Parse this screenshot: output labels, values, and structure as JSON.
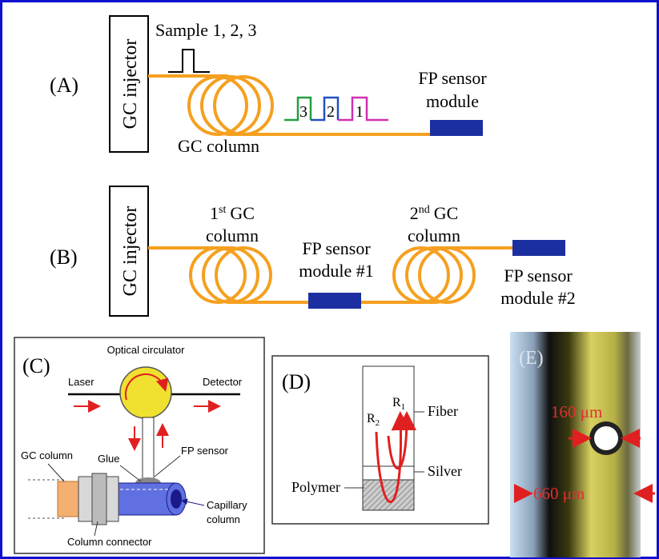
{
  "panel_a": {
    "label": "(A)",
    "injector": "GC injector",
    "sample": "Sample 1, 2, 3",
    "column": "GC column",
    "peaks": [
      "3",
      "2",
      "1"
    ],
    "sensor": [
      "FP sensor",
      "module"
    ]
  },
  "panel_b": {
    "label": "(B)",
    "injector": "GC injector",
    "first_column": {
      "number": "1",
      "suffix": "st",
      "name": "GC",
      "line2": "column"
    },
    "sensor_1": [
      "FP sensor",
      "module #1"
    ],
    "second_column": {
      "number": "2",
      "suffix": "nd",
      "name": "GC",
      "line2": "column"
    },
    "sensor_2": [
      "FP sensor",
      "module #2"
    ]
  },
  "panel_c": {
    "label": "(C)",
    "circulator": "Optical circulator",
    "laser": "Laser",
    "detector": "Detector",
    "gc_column": "GC column",
    "glue": "Glue",
    "fp_sensor": "FP sensor",
    "capillary": [
      "Capillary",
      "column"
    ],
    "connector": "Column connector"
  },
  "panel_d": {
    "label": "(D)",
    "r2": {
      "letter": "R",
      "sub": "2"
    },
    "r1": {
      "letter": "R",
      "sub": "1"
    },
    "fiber": "Fiber",
    "silver": "Silver",
    "polymer": "Polymer"
  },
  "panel_e": {
    "label": "(E)",
    "inner": "160 μm",
    "outer": "660 μm"
  }
}
